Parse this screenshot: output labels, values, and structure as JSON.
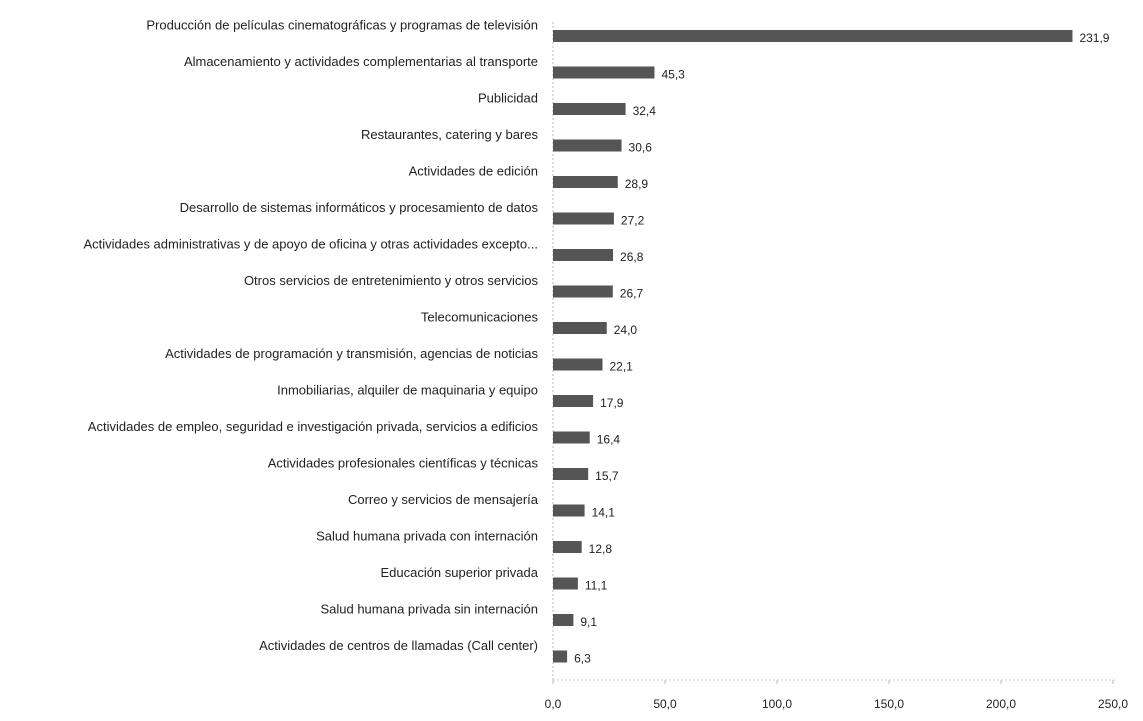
{
  "chart_data": {
    "type": "barh",
    "categories": [
      "Producción de películas cinematográficas y programas de televisión",
      "Almacenamiento y actividades complementarias al transporte",
      "Publicidad",
      "Restaurantes, catering y bares",
      "Actividades de edición",
      "Desarrollo de sistemas informáticos y procesamiento de datos",
      "Actividades administrativas y de apoyo de oficina y otras actividades excepto...",
      "Otros servicios de entretenimiento y otros servicios",
      "Telecomunicaciones",
      "Actividades de programación y transmisión, agencias de noticias",
      "Inmobiliarias, alquiler de maquinaria y equipo",
      "Actividades de empleo, seguridad e investigación privada, servicios a edificios",
      "Actividades profesionales científicas y técnicas",
      "Correo y servicios de mensajería",
      "Salud humana privada con internación",
      "Educación superior privada",
      "Salud humana privada sin internación",
      "Actividades de centros de llamadas (Call center)"
    ],
    "values": [
      231.9,
      45.3,
      32.4,
      30.6,
      28.9,
      27.2,
      26.8,
      26.7,
      24.0,
      22.1,
      17.9,
      16.4,
      15.7,
      14.1,
      12.8,
      11.1,
      9.1,
      6.3
    ],
    "value_labels": [
      "231,9",
      "45,3",
      "32,4",
      "30,6",
      "28,9",
      "27,2",
      "26,8",
      "26,7",
      "24,0",
      "22,1",
      "17,9",
      "16,4",
      "15,7",
      "14,1",
      "12,8",
      "11,1",
      "9,1",
      "6,3"
    ],
    "color": "#555555",
    "xlim": [
      0,
      250
    ],
    "xticks": [
      {
        "value": 0,
        "label": "0,0"
      },
      {
        "value": 50,
        "label": "50,0"
      },
      {
        "value": 100,
        "label": "100,0"
      },
      {
        "value": 150,
        "label": "150,0"
      },
      {
        "value": 200,
        "label": "200,0"
      },
      {
        "value": 250,
        "label": "250,0"
      }
    ]
  }
}
